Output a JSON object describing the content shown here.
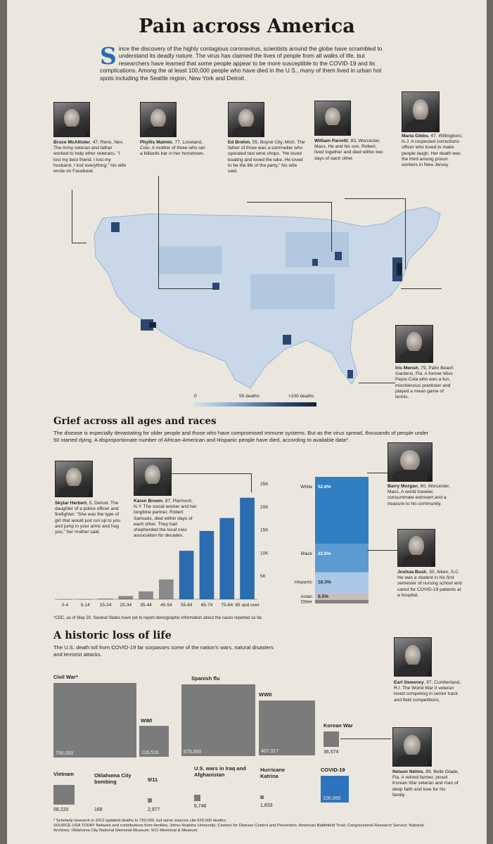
{
  "title": "Pain across America",
  "intro": {
    "dropcap": "S",
    "text": "ince the discovery of the highly contagious coronavirus, scientists around the globe have scrambled to understand its deadly nature. The virus has claimed the lives of people from all walks of life, but researchers have learned that some people appear to be more susceptible to the COVID-19 and its complications. Among the at least 100,000 people who have died in the U.S., many of them lived in urban hot spots including the Seattle region, New York and Detroit."
  },
  "profiles": [
    {
      "name": "Bruce McAllister",
      "details": ", 47, Reno, Nev. The Army veteran and father worked to help other veterans. \"I lost my best friend. I lost my husband. I lost everything,\" his wife wrote on Facebook."
    },
    {
      "name": "Phyllis Malmin",
      "details": ", 77, Loveland, Colo. A mother of three who ran a billiards bar in her hometown."
    },
    {
      "name": "Ed Brehm",
      "details": ", 55, Boyne City, Mich. The father of three was a sommelier who operated two wine shops. \"He loved boating and loved the lake. He loved to be the life of the party,\" his wife said."
    },
    {
      "name": "William Parretti",
      "details": ", 83, Worcester, Mass. He and his son, Robert, lived together and died within two days of each other."
    },
    {
      "name": "Maria Gibbs",
      "details": ", 47, Willingboro, N.J. A respected corrections officer who loved to make people laugh. Her death was the third among prison workers in New Jersey."
    },
    {
      "name": "Iris Mensh",
      "details": ", 79, Palm Beach Gardens, Fla. A former Miss Pepsi-Cola who was a fun, mischievous prankster and played a mean game of tennis."
    }
  ],
  "map_legend": {
    "labels": [
      "0",
      "50 deaths",
      ">100 deaths"
    ],
    "colors": [
      "#d6e2ee",
      "#9db8d6",
      "#5c82b2",
      "#2c4670",
      "#1a2333"
    ]
  },
  "grief": {
    "heading": "Grief across all ages and races",
    "text": "The disease is especially devastating for older people and those who have compromised immune systems. But as the virus spread, thousands of people under 50 started dying. A disproportionate number of African-American and Hispanic people have died, according to available data*.",
    "profiles": [
      {
        "name": "Skylar Herbert",
        "details": ", 5, Detroit. The daughter of a police officer and firefighter. \"She was the type of girl that would just run up to you and jump in your arms and hug you,\" her mother said."
      },
      {
        "name": "Karen Brown",
        "details": ", 87, Piermont, N.Y. The social worker and her longtime partner, Robert Samuels, died within days of each other. They had shepherded the local civic association for decades."
      },
      {
        "name": "Barry Morgan",
        "details": ", 80, Worcester, Mass. A world traveler, consummate extrovert and a treasure to his community."
      },
      {
        "name": "Joshua Bush",
        "details": ", 30, Aiken, S.C. He was a student in his first semester of nursing school and cared for COVID-19 patients at a hospital."
      }
    ],
    "footnote": "*CDC, as of May 20. Several States have yet to report demographic information about the cases reported so far."
  },
  "chart_data": [
    {
      "type": "bar",
      "categories": [
        "0-4",
        "5-14",
        "15-24",
        "25-34",
        "35-44",
        "45-54",
        "55-64",
        "65-74",
        "75-84",
        "85 and over"
      ],
      "values": [
        10,
        20,
        150,
        700,
        1700,
        4300,
        10500,
        14800,
        17600,
        22000
      ],
      "y_ticks": [
        "5K",
        "10K",
        "15K",
        "20K",
        "25K"
      ],
      "ylim": [
        0,
        25000
      ],
      "colors": {
        "under55": "#8a8a8a",
        "over55": "#2b6cb0"
      }
    },
    {
      "type": "bar",
      "stacked": true,
      "categories": [
        "White",
        "Black",
        "Hispanic",
        "Asian",
        "Other"
      ],
      "values": [
        52.8,
        22.6,
        16.3,
        5.5,
        2.8
      ],
      "value_labels": [
        "52.8%",
        "22.6%",
        "16.3%",
        "5.5%",
        ""
      ],
      "colors": [
        "#2f7fc0",
        "#5b9bd1",
        "#a9c7e6",
        "#c8bdbd",
        "#8a7f7f"
      ]
    },
    {
      "type": "area",
      "categories": [
        "Civil War*",
        "WWI",
        "Spanish flu",
        "WWII",
        "Korean War",
        "Vietnam",
        "Oklahoma City bombing",
        "9/11",
        "U.S. wars in Iraq and Afghanistan",
        "Hurricane Katrina",
        "COVID-19"
      ],
      "values": [
        750000,
        116516,
        675000,
        407317,
        36574,
        58220,
        168,
        2977,
        6746,
        1833,
        100000
      ],
      "value_labels": [
        "750,000",
        "116,516",
        "675,000",
        "407,317",
        "36,574",
        "58,220",
        "168",
        "2,977",
        "6,746",
        "1,833",
        "100,000"
      ],
      "colors": {
        "default": "#7b7b7b",
        "highlight": "#2e73bd"
      }
    }
  ],
  "history": {
    "heading": "A historic loss of life",
    "text": "The U.S. death toll from COVID-19 far surpasses some of the nation's wars, natural disasters and terrorist attacks.",
    "profiles": [
      {
        "name": "Earl Sweeney",
        "details": ", 97, Cumberland, R.I. The World War II veteran loved competing in senior track and field competitions."
      },
      {
        "name": "Nelson Nelms",
        "details": ", 89, Belle Glade, Fla. A retired farmer, proud Korean War veteran and man of deep faith and love for his family."
      }
    ],
    "footnote": "* Scholarly research in 2012 updated deaths to 750,000, but some sources cite 620,000 deaths;",
    "source": "SOURCE USA TODAY Network and contributions from families; Johns Hopkins University; Centers for Disease Control and Prevention; American Battlefield Trust; Congressional Research Service; National Archives; Oklahoma City National Memorial Museum; 9/11 Memorial & Museum."
  }
}
